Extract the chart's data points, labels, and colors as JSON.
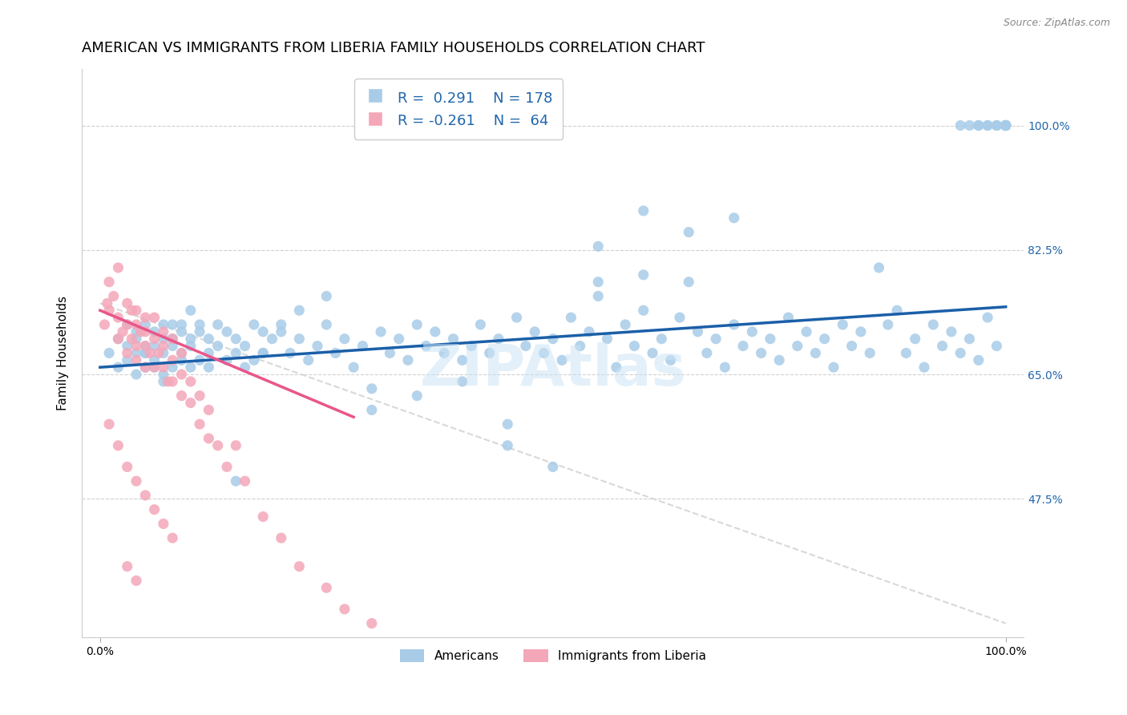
{
  "title": "AMERICAN VS IMMIGRANTS FROM LIBERIA FAMILY HOUSEHOLDS CORRELATION CHART",
  "source": "Source: ZipAtlas.com",
  "ylabel": "Family Households",
  "y_tick_labels": [
    "47.5%",
    "65.0%",
    "82.5%",
    "100.0%"
  ],
  "y_tick_values": [
    0.475,
    0.65,
    0.825,
    1.0
  ],
  "xlim": [
    -0.02,
    1.02
  ],
  "ylim": [
    0.28,
    1.08
  ],
  "watermark": "ZIPAtlas",
  "blue_scatter_color": "#a8cce8",
  "pink_scatter_color": "#f4a7b9",
  "blue_line_color": "#1a5fa8",
  "pink_line_color": "#e8578a",
  "diag_line_color": "#d8d8d8",
  "title_fontsize": 13,
  "axis_label_fontsize": 11,
  "tick_fontsize": 10,
  "americans_x": [
    0.01,
    0.02,
    0.02,
    0.03,
    0.03,
    0.03,
    0.04,
    0.04,
    0.04,
    0.04,
    0.05,
    0.05,
    0.05,
    0.05,
    0.06,
    0.06,
    0.06,
    0.07,
    0.07,
    0.07,
    0.07,
    0.08,
    0.08,
    0.08,
    0.08,
    0.09,
    0.09,
    0.09,
    0.1,
    0.1,
    0.1,
    0.11,
    0.11,
    0.11,
    0.12,
    0.12,
    0.12,
    0.13,
    0.13,
    0.14,
    0.14,
    0.15,
    0.15,
    0.16,
    0.16,
    0.17,
    0.17,
    0.18,
    0.18,
    0.19,
    0.2,
    0.21,
    0.22,
    0.23,
    0.24,
    0.25,
    0.26,
    0.27,
    0.28,
    0.29,
    0.3,
    0.31,
    0.32,
    0.33,
    0.34,
    0.35,
    0.36,
    0.37,
    0.38,
    0.39,
    0.4,
    0.41,
    0.42,
    0.43,
    0.44,
    0.45,
    0.46,
    0.47,
    0.48,
    0.49,
    0.5,
    0.51,
    0.52,
    0.53,
    0.54,
    0.55,
    0.56,
    0.57,
    0.58,
    0.59,
    0.6,
    0.61,
    0.62,
    0.63,
    0.64,
    0.65,
    0.66,
    0.67,
    0.68,
    0.69,
    0.7,
    0.71,
    0.72,
    0.73,
    0.74,
    0.75,
    0.76,
    0.77,
    0.78,
    0.79,
    0.8,
    0.81,
    0.82,
    0.83,
    0.84,
    0.85,
    0.86,
    0.87,
    0.88,
    0.89,
    0.9,
    0.91,
    0.92,
    0.93,
    0.94,
    0.95,
    0.96,
    0.97,
    0.98,
    0.99,
    1.0,
    1.0,
    1.0,
    1.0,
    1.0,
    1.0,
    1.0,
    1.0,
    1.0,
    1.0,
    0.95,
    0.96,
    0.97,
    0.97,
    0.98,
    0.98,
    0.99,
    0.99,
    0.55,
    0.6,
    0.65,
    0.7,
    0.55,
    0.6,
    0.3,
    0.35,
    0.4,
    0.45,
    0.5,
    0.2,
    0.22,
    0.25,
    0.18,
    0.15,
    0.05,
    0.06,
    0.07,
    0.08,
    0.09,
    0.1
  ],
  "americans_y": [
    0.68,
    0.7,
    0.66,
    0.69,
    0.72,
    0.67,
    0.71,
    0.68,
    0.65,
    0.7,
    0.69,
    0.72,
    0.66,
    0.68,
    0.71,
    0.67,
    0.69,
    0.7,
    0.65,
    0.72,
    0.68,
    0.7,
    0.66,
    0.69,
    0.72,
    0.67,
    0.71,
    0.68,
    0.7,
    0.66,
    0.69,
    0.72,
    0.67,
    0.71,
    0.68,
    0.7,
    0.66,
    0.69,
    0.72,
    0.67,
    0.71,
    0.68,
    0.7,
    0.66,
    0.69,
    0.72,
    0.67,
    0.71,
    0.68,
    0.7,
    0.71,
    0.68,
    0.7,
    0.67,
    0.69,
    0.72,
    0.68,
    0.7,
    0.66,
    0.69,
    0.63,
    0.71,
    0.68,
    0.7,
    0.67,
    0.72,
    0.69,
    0.71,
    0.68,
    0.7,
    0.67,
    0.69,
    0.72,
    0.68,
    0.7,
    0.58,
    0.73,
    0.69,
    0.71,
    0.68,
    0.7,
    0.67,
    0.73,
    0.69,
    0.71,
    0.76,
    0.7,
    0.66,
    0.72,
    0.69,
    0.74,
    0.68,
    0.7,
    0.67,
    0.73,
    0.78,
    0.71,
    0.68,
    0.7,
    0.66,
    0.72,
    0.69,
    0.71,
    0.68,
    0.7,
    0.67,
    0.73,
    0.69,
    0.71,
    0.68,
    0.7,
    0.66,
    0.72,
    0.69,
    0.71,
    0.68,
    0.8,
    0.72,
    0.74,
    0.68,
    0.7,
    0.66,
    0.72,
    0.69,
    0.71,
    0.68,
    0.7,
    0.67,
    0.73,
    0.69,
    1.0,
    1.0,
    1.0,
    1.0,
    1.0,
    1.0,
    1.0,
    1.0,
    1.0,
    1.0,
    1.0,
    1.0,
    1.0,
    1.0,
    1.0,
    1.0,
    1.0,
    1.0,
    0.78,
    0.79,
    0.85,
    0.87,
    0.83,
    0.88,
    0.6,
    0.62,
    0.64,
    0.55,
    0.52,
    0.72,
    0.74,
    0.76,
    0.68,
    0.5,
    0.68,
    0.66,
    0.64,
    0.7,
    0.72,
    0.74
  ],
  "liberia_x": [
    0.005,
    0.008,
    0.01,
    0.01,
    0.015,
    0.02,
    0.02,
    0.02,
    0.025,
    0.03,
    0.03,
    0.03,
    0.035,
    0.035,
    0.04,
    0.04,
    0.04,
    0.04,
    0.045,
    0.05,
    0.05,
    0.05,
    0.05,
    0.055,
    0.06,
    0.06,
    0.06,
    0.065,
    0.07,
    0.07,
    0.07,
    0.075,
    0.08,
    0.08,
    0.08,
    0.09,
    0.09,
    0.09,
    0.1,
    0.1,
    0.11,
    0.11,
    0.12,
    0.12,
    0.13,
    0.14,
    0.15,
    0.16,
    0.18,
    0.2,
    0.22,
    0.25,
    0.27,
    0.3,
    0.01,
    0.02,
    0.03,
    0.04,
    0.05,
    0.06,
    0.07,
    0.08,
    0.03,
    0.04
  ],
  "liberia_y": [
    0.72,
    0.75,
    0.78,
    0.74,
    0.76,
    0.73,
    0.7,
    0.8,
    0.71,
    0.75,
    0.68,
    0.72,
    0.74,
    0.7,
    0.72,
    0.69,
    0.74,
    0.67,
    0.71,
    0.73,
    0.69,
    0.66,
    0.71,
    0.68,
    0.7,
    0.66,
    0.73,
    0.68,
    0.69,
    0.66,
    0.71,
    0.64,
    0.67,
    0.64,
    0.7,
    0.65,
    0.62,
    0.68,
    0.64,
    0.61,
    0.58,
    0.62,
    0.56,
    0.6,
    0.55,
    0.52,
    0.55,
    0.5,
    0.45,
    0.42,
    0.38,
    0.35,
    0.32,
    0.3,
    0.58,
    0.55,
    0.52,
    0.5,
    0.48,
    0.46,
    0.44,
    0.42,
    0.38,
    0.36
  ],
  "blue_trend_x": [
    0.0,
    1.0
  ],
  "blue_trend_y": [
    0.66,
    0.745
  ],
  "pink_trend_x": [
    0.0,
    0.28
  ],
  "pink_trend_y": [
    0.74,
    0.59
  ],
  "diag_trend_x": [
    0.0,
    1.0
  ],
  "diag_trend_y": [
    0.75,
    0.3
  ]
}
